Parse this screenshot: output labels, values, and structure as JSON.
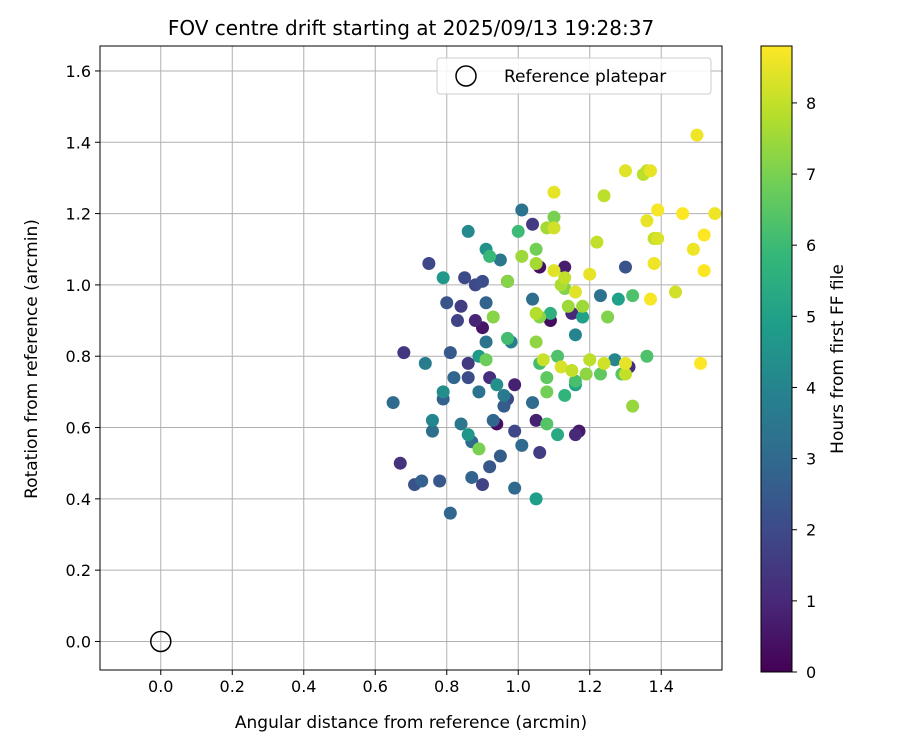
{
  "chart_data": {
    "type": "scatter",
    "title": "FOV centre drift starting at 2025/09/13 19:28:37",
    "xlabel": "Angular distance from reference (arcmin)",
    "ylabel": "Rotation from reference (arcmin)",
    "xlim": [
      -0.17,
      1.57
    ],
    "ylim": [
      -0.08,
      1.67
    ],
    "xticks": [
      "0.0",
      "0.2",
      "0.4",
      "0.6",
      "0.8",
      "1.0",
      "1.2",
      "1.4"
    ],
    "yticks": [
      "0.0",
      "0.2",
      "0.4",
      "0.6",
      "0.8",
      "1.0",
      "1.2",
      "1.4",
      "1.6"
    ],
    "grid": true,
    "legend_position": "top-right",
    "reference": {
      "name": "Reference platepar",
      "x": 0.0,
      "y": 0.0
    },
    "colorbar": {
      "label": "Hours from first FF file",
      "range": [
        0,
        8.8
      ],
      "ticks": [
        "0",
        "1",
        "2",
        "3",
        "4",
        "5",
        "6",
        "7",
        "8"
      ],
      "colormap": [
        "#440154",
        "#482878",
        "#3e4989",
        "#31688e",
        "#26828e",
        "#1f9e89",
        "#35b779",
        "#6ece58",
        "#b5de2b",
        "#fde725"
      ]
    },
    "points": [
      [
        0.97,
        1.01,
        0.2
      ],
      [
        1.09,
        0.9,
        0.3
      ],
      [
        1.06,
        1.05,
        0.4
      ],
      [
        0.9,
        0.88,
        0.5
      ],
      [
        0.94,
        0.61,
        0.3
      ],
      [
        1.17,
        0.59,
        0.6
      ],
      [
        0.99,
        0.72,
        0.8
      ],
      [
        1.05,
        0.62,
        0.8
      ],
      [
        0.88,
        0.9,
        0.9
      ],
      [
        1.16,
        0.58,
        1.0
      ],
      [
        1.13,
        1.05,
        0.7
      ],
      [
        0.68,
        0.81,
        1.4
      ],
      [
        0.92,
        0.74,
        1.2
      ],
      [
        1.31,
        0.77,
        1.1
      ],
      [
        1.15,
        0.92,
        1.0
      ],
      [
        0.67,
        0.5,
        1.3
      ],
      [
        1.06,
        0.53,
        1.6
      ],
      [
        0.86,
        0.78,
        1.5
      ],
      [
        0.84,
        0.94,
        1.6
      ],
      [
        0.75,
        1.06,
        1.9
      ],
      [
        0.88,
        1.0,
        2.0
      ],
      [
        0.9,
        0.44,
        1.8
      ],
      [
        0.83,
        0.9,
        1.8
      ],
      [
        0.97,
        0.68,
        2.0
      ],
      [
        0.86,
        0.74,
        2.1
      ],
      [
        0.99,
        0.59,
        1.9
      ],
      [
        1.04,
        1.17,
        1.5
      ],
      [
        1.3,
        1.05,
        2.3
      ],
      [
        0.95,
        0.52,
        2.6
      ],
      [
        0.92,
        0.49,
        2.4
      ],
      [
        0.8,
        0.95,
        2.3
      ],
      [
        0.9,
        1.01,
        2.1
      ],
      [
        0.85,
        1.02,
        2.0
      ],
      [
        0.71,
        0.44,
        2.2
      ],
      [
        0.78,
        0.45,
        2.4
      ],
      [
        0.73,
        0.45,
        2.7
      ],
      [
        0.81,
        0.81,
        2.5
      ],
      [
        0.93,
        0.62,
        2.9
      ],
      [
        0.96,
        0.66,
        2.6
      ],
      [
        0.87,
        0.46,
        2.8
      ],
      [
        0.99,
        0.43,
        3.0
      ],
      [
        0.81,
        0.36,
        2.9
      ],
      [
        0.65,
        0.67,
        3.0
      ],
      [
        0.76,
        0.59,
        3.2
      ],
      [
        0.79,
        0.68,
        2.7
      ],
      [
        0.82,
        0.74,
        2.9
      ],
      [
        0.87,
        0.56,
        3.0
      ],
      [
        0.91,
        0.95,
        2.8
      ],
      [
        1.01,
        0.55,
        3.0
      ],
      [
        1.04,
        0.67,
        3.1
      ],
      [
        1.04,
        0.96,
        3.2
      ],
      [
        1.01,
        1.21,
        3.4
      ],
      [
        1.23,
        0.97,
        3.3
      ],
      [
        0.91,
        0.84,
        3.4
      ],
      [
        0.95,
        1.07,
        3.5
      ],
      [
        0.74,
        0.78,
        3.7
      ],
      [
        0.96,
        0.69,
        3.6
      ],
      [
        0.89,
        0.7,
        3.3
      ],
      [
        0.84,
        0.61,
        3.5
      ],
      [
        0.86,
        1.15,
        4.2
      ],
      [
        0.98,
        0.84,
        3.8
      ],
      [
        1.16,
        0.86,
        4.0
      ],
      [
        1.27,
        0.79,
        4.1
      ],
      [
        0.76,
        0.62,
        4.0
      ],
      [
        0.79,
        0.7,
        4.3
      ],
      [
        0.86,
        0.58,
        4.6
      ],
      [
        0.94,
        0.72,
        4.4
      ],
      [
        0.91,
        1.1,
        4.5
      ],
      [
        1.16,
        0.72,
        5.0
      ],
      [
        1.18,
        0.91,
        5.0
      ],
      [
        1.28,
        0.96,
        5.0
      ],
      [
        0.79,
        1.02,
        4.7
      ],
      [
        0.89,
        0.8,
        4.8
      ],
      [
        1.05,
        0.4,
        4.9
      ],
      [
        1.11,
        0.58,
        5.3
      ],
      [
        1.09,
        0.92,
        5.6
      ],
      [
        1.13,
        0.69,
        5.7
      ],
      [
        0.92,
        1.08,
        5.9
      ],
      [
        1.0,
        1.15,
        6.0
      ],
      [
        1.06,
        0.78,
        6.1
      ],
      [
        1.16,
        0.73,
        6.2
      ],
      [
        1.36,
        0.8,
        6.3
      ],
      [
        0.97,
        0.85,
        6.1
      ],
      [
        1.08,
        0.61,
        6.4
      ],
      [
        1.11,
        0.8,
        6.3
      ],
      [
        1.08,
        0.74,
        6.6
      ],
      [
        1.32,
        0.97,
        6.3
      ],
      [
        1.29,
        0.75,
        6.4
      ],
      [
        1.23,
        0.75,
        6.6
      ],
      [
        1.08,
        0.7,
        6.9
      ],
      [
        0.91,
        0.79,
        6.8
      ],
      [
        1.05,
        1.1,
        6.9
      ],
      [
        0.89,
        0.54,
        7.0
      ],
      [
        1.1,
        1.19,
        7.0
      ],
      [
        1.13,
        0.99,
        7.1
      ],
      [
        0.97,
        1.01,
        7.2
      ],
      [
        0.93,
        0.91,
        7.2
      ],
      [
        1.06,
        0.91,
        7.2
      ],
      [
        1.25,
        0.91,
        7.1
      ],
      [
        1.32,
        0.66,
        7.4
      ],
      [
        1.14,
        0.94,
        7.5
      ],
      [
        1.01,
        1.08,
        7.5
      ],
      [
        1.05,
        0.84,
        7.3
      ],
      [
        1.18,
        0.94,
        7.5
      ],
      [
        1.05,
        1.06,
        7.6
      ],
      [
        1.19,
        0.75,
        7.3
      ],
      [
        1.08,
        1.16,
        7.6
      ],
      [
        1.12,
        1.0,
        7.7
      ],
      [
        1.2,
        0.79,
        7.9
      ],
      [
        1.22,
        1.12,
        8.0
      ],
      [
        1.24,
        1.25,
        7.9
      ],
      [
        1.24,
        0.78,
        8.2
      ],
      [
        1.3,
        0.75,
        8.0
      ],
      [
        1.05,
        0.92,
        7.8
      ],
      [
        1.07,
        0.79,
        8.1
      ],
      [
        1.12,
        0.77,
        8.3
      ],
      [
        1.16,
        0.98,
        8.4
      ],
      [
        1.36,
        1.32,
        8.0
      ],
      [
        1.35,
        1.31,
        7.9
      ],
      [
        1.1,
        1.04,
        8.4
      ],
      [
        1.15,
        0.76,
        8.0
      ],
      [
        1.3,
        1.32,
        8.4
      ],
      [
        1.38,
        1.13,
        8.0
      ],
      [
        1.44,
        0.98,
        8.2
      ],
      [
        1.36,
        1.18,
        8.5
      ],
      [
        1.39,
        1.13,
        8.3
      ],
      [
        1.1,
        1.26,
        8.5
      ],
      [
        1.1,
        1.16,
        8.2
      ],
      [
        1.13,
        1.02,
        8.0
      ],
      [
        1.2,
        1.03,
        8.5
      ],
      [
        1.37,
        0.96,
        8.7
      ],
      [
        1.5,
        1.42,
        8.6
      ],
      [
        1.51,
        0.78,
        8.8
      ],
      [
        1.46,
        1.2,
        8.8
      ],
      [
        1.39,
        1.21,
        8.7
      ],
      [
        1.52,
        1.14,
        8.8
      ],
      [
        1.55,
        1.2,
        8.6
      ],
      [
        1.52,
        1.04,
        8.8
      ],
      [
        1.49,
        1.1,
        8.6
      ],
      [
        1.37,
        1.32,
        8.5
      ],
      [
        1.38,
        1.06,
        8.6
      ],
      [
        1.3,
        0.78,
        8.5
      ]
    ]
  }
}
